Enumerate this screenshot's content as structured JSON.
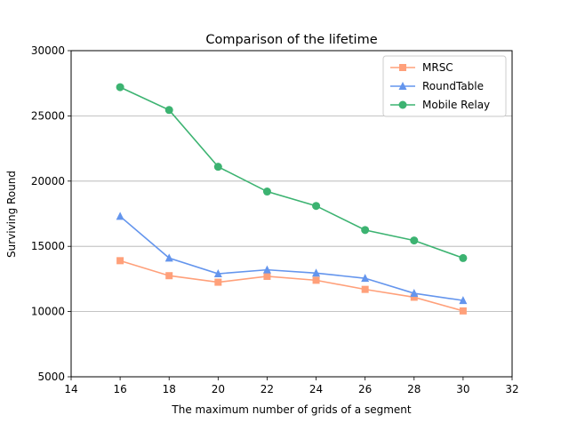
{
  "chart_data": {
    "type": "line",
    "title": "Comparison of the lifetime",
    "xlabel": "The maximum number of grids of a segment",
    "ylabel": "Surviving Round",
    "xlim": [
      14,
      32
    ],
    "ylim": [
      5000,
      30000
    ],
    "xticks": [
      14,
      16,
      18,
      20,
      22,
      24,
      26,
      28,
      30,
      32
    ],
    "yticks": [
      5000,
      10000,
      15000,
      20000,
      25000,
      30000
    ],
    "grid": "horizontal",
    "legend_position": "top-right",
    "x": [
      16,
      18,
      20,
      22,
      24,
      26,
      28,
      30
    ],
    "series": [
      {
        "name": "MRSC",
        "marker": "square",
        "color": "#FFA07A",
        "values": [
          13900,
          12750,
          12250,
          12700,
          12400,
          11700,
          11100,
          10050
        ]
      },
      {
        "name": "RoundTable",
        "marker": "triangle",
        "color": "#6495ED",
        "values": [
          17300,
          14100,
          12900,
          13200,
          12950,
          12550,
          11400,
          10850
        ]
      },
      {
        "name": "Mobile Relay",
        "marker": "circle",
        "color": "#3CB371",
        "values": [
          27200,
          25450,
          21100,
          19200,
          18100,
          16250,
          15450,
          14100
        ]
      }
    ]
  }
}
